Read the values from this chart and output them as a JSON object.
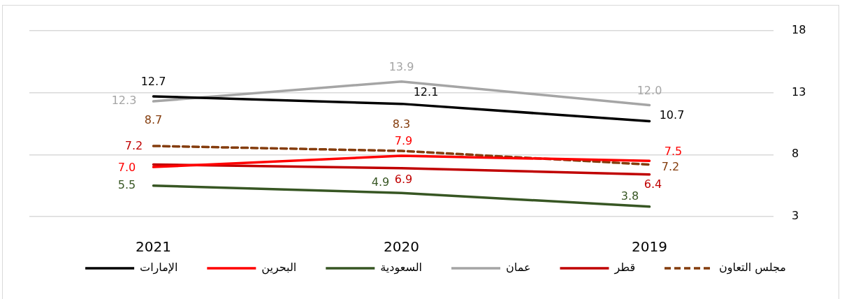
{
  "chart_data": {
    "type": "line",
    "categories": [
      "2021",
      "2020",
      "2019"
    ],
    "series": [
      {
        "name": "الإمارات",
        "color": "#000000",
        "values": [
          12.7,
          12.1,
          10.7
        ],
        "value_labels": [
          "12.7",
          "12.1",
          "10.7"
        ]
      },
      {
        "name": "البحرين",
        "color": "#ff0000",
        "values": [
          7.0,
          7.9,
          7.5
        ],
        "value_labels": [
          "7.0",
          "7.9",
          "7.5"
        ]
      },
      {
        "name": "السعودية",
        "color": "#375623",
        "values": [
          5.5,
          4.9,
          3.8
        ],
        "value_labels": [
          "5.5",
          "4.9",
          "3.8"
        ]
      },
      {
        "name": "عمان",
        "color": "#a5a5a5",
        "values": [
          12.3,
          13.9,
          12.0
        ],
        "value_labels": [
          "12.3",
          "13.9",
          "12.0"
        ]
      },
      {
        "name": "قطر",
        "color": "#c00000",
        "values": [
          7.2,
          6.9,
          6.4
        ],
        "value_labels": [
          "7.2",
          "6.9",
          "6.4"
        ]
      },
      {
        "name": "مجلس التعاون",
        "color": "#843c0c",
        "values": [
          8.7,
          8.3,
          7.2
        ],
        "value_labels": [
          "8.7",
          "8.3",
          "7.2"
        ],
        "line_style": "dashed"
      }
    ],
    "ylim": [
      3,
      18
    ],
    "yticks": [
      3,
      8,
      13,
      18
    ],
    "grid": "y",
    "legend": "bottom",
    "line_style": "solid"
  }
}
